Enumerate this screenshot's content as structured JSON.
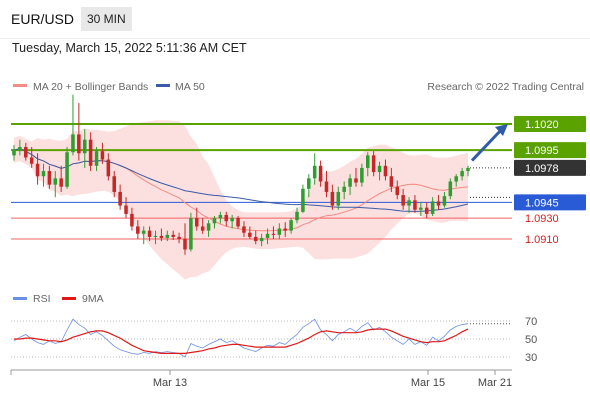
{
  "header": {
    "symbol": "EUR/USD",
    "interval": "30 MIN",
    "datetime": "Tuesday, March 15, 2022 5:11:36 AM CET"
  },
  "legend": {
    "bollinger": "MA 20 + Bollinger Bands",
    "ma50": "MA 50",
    "credit": "Research © 2022 Trading Central",
    "rsi": "RSI",
    "rsi_ma": "9MA"
  },
  "colors": {
    "up": "#2e9e30",
    "down": "#c62828",
    "bollinger_fill": "#fbd9d9",
    "ma20": "#f28b82",
    "ma50": "#3a5ba8",
    "resistance": "#5aa200",
    "support": "#2a5bd7",
    "level_red": "#f06060",
    "current_label": "#333333",
    "arrow": "#2f5ba8",
    "rsi_line": "#6a8fe6",
    "rsi_ma_line": "#e01818"
  },
  "chart_data": [
    {
      "type": "candlestick",
      "price_range": [
        1.086,
        1.106
      ],
      "x_ticks": [
        "Mar 13",
        "Mar 15",
        "Mar 21"
      ],
      "levels": [
        {
          "value": 1.102,
          "label": "1.1020",
          "style": "resistance"
        },
        {
          "value": 1.0995,
          "label": "1.0995",
          "style": "resistance"
        },
        {
          "value": 1.0978,
          "label": "1.0978",
          "style": "current"
        },
        {
          "value": 1.0945,
          "label": "1.0945",
          "style": "support"
        },
        {
          "value": 1.093,
          "label": "1.0930",
          "style": "red"
        },
        {
          "value": 1.091,
          "label": "1.0910",
          "style": "red"
        }
      ],
      "candles": [
        [
          1.099,
          1.1,
          1.0985,
          1.0995
        ],
        [
          1.0995,
          1.1005,
          1.099,
          1.0998
        ],
        [
          1.0998,
          1.1002,
          1.0985,
          1.0988
        ],
        [
          1.0988,
          1.0998,
          1.0978,
          1.0982
        ],
        [
          1.0982,
          1.0992,
          1.0962,
          1.097
        ],
        [
          1.097,
          1.0982,
          1.096,
          1.0975
        ],
        [
          1.0975,
          1.098,
          1.0958,
          1.0962
        ],
        [
          1.0962,
          1.0975,
          1.095,
          1.0968
        ],
        [
          1.0968,
          1.098,
          1.0955,
          1.096
        ],
        [
          1.096,
          1.0998,
          1.0958,
          1.0993
        ],
        [
          1.0993,
          1.1048,
          1.099,
          1.101
        ],
        [
          1.101,
          1.104,
          1.0985,
          1.0992
        ],
        [
          1.0992,
          1.1015,
          1.0978,
          1.1005
        ],
        [
          1.1005,
          1.1012,
          1.0975,
          1.098
        ],
        [
          1.098,
          1.0998,
          1.0975,
          1.0994
        ],
        [
          1.0994,
          1.1002,
          1.0982,
          1.0986
        ],
        [
          1.0986,
          1.0992,
          1.0966,
          1.097
        ],
        [
          1.097,
          1.0975,
          1.095,
          1.0955
        ],
        [
          1.0955,
          1.0962,
          1.0938,
          1.0942
        ],
        [
          1.0942,
          1.095,
          1.093,
          1.0934
        ],
        [
          1.0934,
          1.094,
          1.0918,
          1.0922
        ],
        [
          1.0922,
          1.0928,
          1.091,
          1.0915
        ],
        [
          1.0915,
          1.0922,
          1.0905,
          1.0918
        ],
        [
          1.0918,
          1.0922,
          1.0908,
          1.0912
        ],
        [
          1.0912,
          1.0918,
          1.0905,
          1.0913
        ],
        [
          1.0913,
          1.092,
          1.0908,
          1.0911
        ],
        [
          1.0911,
          1.0918,
          1.0908,
          1.0914
        ],
        [
          1.0914,
          1.0918,
          1.0909,
          1.0912
        ],
        [
          1.0912,
          1.0916,
          1.0906,
          1.091
        ],
        [
          1.091,
          1.0925,
          1.0895,
          1.09
        ],
        [
          1.09,
          1.0935,
          1.0898,
          1.093
        ],
        [
          1.093,
          1.094,
          1.0918,
          1.0922
        ],
        [
          1.0922,
          1.093,
          1.0915,
          1.0918
        ],
        [
          1.0918,
          1.0928,
          1.0912,
          1.0925
        ],
        [
          1.0925,
          1.0932,
          1.092,
          1.093
        ],
        [
          1.093,
          1.0936,
          1.0925,
          1.0933
        ],
        [
          1.0933,
          1.0936,
          1.0922,
          1.0927
        ],
        [
          1.0927,
          1.0933,
          1.092,
          1.093
        ],
        [
          1.093,
          1.0932,
          1.092,
          1.0922
        ],
        [
          1.0922,
          1.0927,
          1.0912,
          1.0916
        ],
        [
          1.0916,
          1.0922,
          1.091,
          1.0912
        ],
        [
          1.0912,
          1.0918,
          1.0905,
          1.0908
        ],
        [
          1.0908,
          1.0915,
          1.0903,
          1.0911
        ],
        [
          1.0911,
          1.092,
          1.0905,
          1.0915
        ],
        [
          1.0915,
          1.0922,
          1.091,
          1.0914
        ],
        [
          1.0914,
          1.0925,
          1.091,
          1.092
        ],
        [
          1.092,
          1.0926,
          1.0912,
          1.0918
        ],
        [
          1.0918,
          1.093,
          1.0915,
          1.0928
        ],
        [
          1.0928,
          1.094,
          1.0925,
          1.0936
        ],
        [
          1.0936,
          1.0962,
          1.0935,
          1.0958
        ],
        [
          1.0958,
          1.0972,
          1.095,
          1.0968
        ],
        [
          1.0968,
          1.0992,
          1.0962,
          1.098
        ],
        [
          1.098,
          1.0985,
          1.096,
          1.0965
        ],
        [
          1.0965,
          1.0975,
          1.095,
          1.0955
        ],
        [
          1.0955,
          1.0962,
          1.0938,
          1.0942
        ],
        [
          1.0942,
          1.096,
          1.0938,
          1.0955
        ],
        [
          1.0955,
          1.0965,
          1.0948,
          1.096
        ],
        [
          1.096,
          1.0972,
          1.0952,
          1.0968
        ],
        [
          1.0968,
          1.0978,
          1.096,
          1.0964
        ],
        [
          1.0964,
          1.0982,
          1.096,
          1.0978
        ],
        [
          1.0978,
          1.0993,
          1.097,
          1.099
        ],
        [
          1.099,
          1.0994,
          1.097,
          1.0974
        ],
        [
          1.0974,
          1.0984,
          1.0966,
          1.098
        ],
        [
          1.098,
          1.0986,
          1.0966,
          1.097
        ],
        [
          1.097,
          1.0978,
          1.0955,
          1.096
        ],
        [
          1.096,
          1.0966,
          1.0948,
          1.0952
        ],
        [
          1.0952,
          1.0958,
          1.0938,
          1.0942
        ],
        [
          1.0942,
          1.095,
          1.0935,
          1.0947
        ],
        [
          1.0947,
          1.0952,
          1.0935,
          1.0938
        ],
        [
          1.0938,
          1.0945,
          1.0932,
          1.094
        ],
        [
          1.094,
          1.0945,
          1.093,
          1.0934
        ],
        [
          1.0934,
          1.095,
          1.0932,
          1.0946
        ],
        [
          1.0946,
          1.0952,
          1.0938,
          1.0942
        ],
        [
          1.0942,
          1.0955,
          1.094,
          1.0951
        ],
        [
          1.0951,
          1.0968,
          1.0948,
          1.0965
        ],
        [
          1.0965,
          1.0972,
          1.096,
          1.097
        ],
        [
          1.097,
          1.0978,
          1.0966,
          1.0975
        ],
        [
          1.0975,
          1.098,
          1.097,
          1.0978
        ]
      ]
    },
    {
      "type": "line",
      "title": "RSI",
      "y_ticks": [
        70,
        50,
        30
      ],
      "ylim": [
        20,
        80
      ],
      "series": [
        {
          "name": "RSI",
          "values": [
            48,
            52,
            55,
            50,
            46,
            44,
            48,
            45,
            47,
            60,
            72,
            66,
            62,
            55,
            58,
            54,
            48,
            42,
            38,
            36,
            34,
            33,
            35,
            34,
            36,
            35,
            36,
            35,
            34,
            30,
            45,
            42,
            40,
            44,
            47,
            50,
            46,
            48,
            44,
            40,
            38,
            36,
            40,
            43,
            42,
            46,
            44,
            50,
            55,
            63,
            67,
            72,
            60,
            55,
            48,
            55,
            58,
            62,
            58,
            64,
            68,
            60,
            63,
            58,
            52,
            48,
            44,
            50,
            44,
            47,
            43,
            52,
            48,
            53,
            60,
            64,
            66,
            67
          ]
        },
        {
          "name": "9MA",
          "values": [
            50,
            50,
            51,
            51,
            50,
            49,
            48,
            48,
            47,
            49,
            52,
            54,
            56,
            58,
            59,
            59,
            57,
            54,
            51,
            47,
            43,
            40,
            37,
            36,
            35,
            34,
            34,
            34,
            34,
            34,
            35,
            36,
            37,
            39,
            40,
            42,
            43,
            44,
            44,
            43,
            42,
            41,
            41,
            41,
            41,
            41,
            41,
            43,
            45,
            48,
            51,
            55,
            58,
            59,
            58,
            57,
            57,
            57,
            57,
            58,
            60,
            61,
            61,
            61,
            59,
            56,
            53,
            51,
            49,
            47,
            46,
            47,
            47,
            48,
            51,
            54,
            58,
            61
          ]
        }
      ]
    }
  ]
}
